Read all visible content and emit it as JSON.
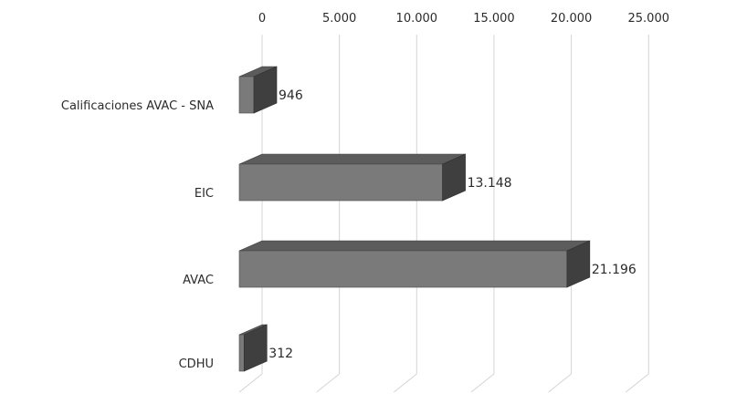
{
  "chart_data": {
    "type": "bar",
    "orientation": "horizontal",
    "style": "3d",
    "categories": [
      "Calificaciones AVAC - SNA",
      "EIC",
      "AVAC",
      "CDHU"
    ],
    "values": [
      946,
      13148,
      21196,
      312
    ],
    "value_labels": [
      "946",
      "13.148",
      "21.196",
      "312"
    ],
    "xlim": [
      0,
      25000
    ],
    "ticks": [
      0,
      5000,
      10000,
      15000,
      20000,
      25000
    ],
    "tick_labels": [
      "0",
      "5.000",
      "10.000",
      "15.000",
      "20.000",
      "25.000"
    ],
    "axis_position": "top",
    "grid": true,
    "colors": {
      "bar_front": "#7a7a7a",
      "bar_top": "#5c5c5c",
      "bar_side": "#3f3f3f",
      "grid": "#d4d4d4"
    }
  }
}
